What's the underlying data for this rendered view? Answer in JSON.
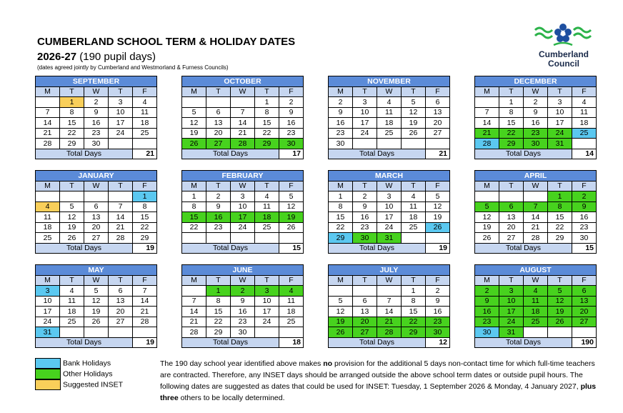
{
  "header": {
    "title": "CUMBERLAND SCHOOL TERM & HOLIDAY DATES",
    "year": "2026-27",
    "pupil_days": "(190 pupil days)",
    "subtitle": "(dates agreed jointly by Cumberland and Westmorland & Furness Councils)"
  },
  "logo": {
    "line1": "Cumberland",
    "line2": "Council"
  },
  "weekdays": [
    "M",
    "T",
    "W",
    "T",
    "F"
  ],
  "total_label": "Total Days",
  "months": [
    {
      "name": "SEPTEMBER",
      "total": 21,
      "weeks": [
        [
          null,
          {
            "day": 1,
            "color": "#f9cf5a"
          },
          2,
          3,
          4
        ],
        [
          7,
          8,
          9,
          10,
          11
        ],
        [
          14,
          15,
          16,
          17,
          18
        ],
        [
          21,
          22,
          23,
          24,
          25
        ],
        [
          28,
          29,
          30,
          null,
          null
        ]
      ]
    },
    {
      "name": "OCTOBER",
      "total": 17,
      "weeks": [
        [
          null,
          null,
          null,
          1,
          2
        ],
        [
          5,
          6,
          7,
          8,
          9
        ],
        [
          12,
          13,
          14,
          15,
          16
        ],
        [
          19,
          20,
          21,
          22,
          23
        ],
        [
          {
            "day": 26,
            "color": "#47d21e"
          },
          {
            "day": 27,
            "color": "#47d21e"
          },
          {
            "day": 28,
            "color": "#47d21e"
          },
          {
            "day": 29,
            "color": "#47d21e"
          },
          {
            "day": 30,
            "color": "#47d21e"
          }
        ]
      ]
    },
    {
      "name": "NOVEMBER",
      "total": 21,
      "weeks": [
        [
          2,
          3,
          4,
          5,
          6
        ],
        [
          9,
          10,
          11,
          12,
          13
        ],
        [
          16,
          17,
          18,
          19,
          20
        ],
        [
          23,
          24,
          25,
          26,
          27
        ],
        [
          30,
          null,
          null,
          null,
          null
        ]
      ]
    },
    {
      "name": "DECEMBER",
      "total": 14,
      "weeks": [
        [
          null,
          1,
          2,
          3,
          4
        ],
        [
          7,
          8,
          9,
          10,
          11
        ],
        [
          14,
          15,
          16,
          17,
          18
        ],
        [
          {
            "day": 21,
            "color": "#47d21e"
          },
          {
            "day": 22,
            "color": "#47d21e"
          },
          {
            "day": 23,
            "color": "#47d21e"
          },
          {
            "day": 24,
            "color": "#47d21e"
          },
          {
            "day": 25,
            "color": "#5bc8f0"
          }
        ],
        [
          {
            "day": 28,
            "color": "#5bc8f0"
          },
          {
            "day": 29,
            "color": "#47d21e"
          },
          {
            "day": 30,
            "color": "#47d21e"
          },
          {
            "day": 31,
            "color": "#47d21e"
          },
          null
        ]
      ]
    },
    {
      "name": "JANUARY",
      "total": 19,
      "weeks": [
        [
          null,
          null,
          null,
          null,
          {
            "day": 1,
            "color": "#5bc8f0"
          }
        ],
        [
          {
            "day": 4,
            "color": "#f9cf5a"
          },
          5,
          6,
          7,
          8
        ],
        [
          11,
          12,
          13,
          14,
          15
        ],
        [
          18,
          19,
          20,
          21,
          22
        ],
        [
          25,
          26,
          27,
          28,
          29
        ]
      ]
    },
    {
      "name": "FEBRUARY",
      "total": 15,
      "weeks": [
        [
          1,
          2,
          3,
          4,
          5
        ],
        [
          8,
          9,
          10,
          11,
          12
        ],
        [
          {
            "day": 15,
            "color": "#47d21e"
          },
          {
            "day": 16,
            "color": "#47d21e"
          },
          {
            "day": 17,
            "color": "#47d21e"
          },
          {
            "day": 18,
            "color": "#47d21e"
          },
          {
            "day": 19,
            "color": "#47d21e"
          }
        ],
        [
          22,
          23,
          24,
          25,
          26
        ],
        [
          null,
          null,
          null,
          null,
          null
        ]
      ]
    },
    {
      "name": "MARCH",
      "total": 19,
      "weeks": [
        [
          1,
          2,
          3,
          4,
          5
        ],
        [
          8,
          9,
          10,
          11,
          12
        ],
        [
          15,
          16,
          17,
          18,
          19
        ],
        [
          22,
          23,
          24,
          25,
          {
            "day": 26,
            "color": "#5bc8f0"
          }
        ],
        [
          {
            "day": 29,
            "color": "#5bc8f0"
          },
          {
            "day": 30,
            "color": "#47d21e"
          },
          {
            "day": 31,
            "color": "#47d21e"
          },
          null,
          null
        ]
      ]
    },
    {
      "name": "APRIL",
      "total": 15,
      "weeks": [
        [
          null,
          null,
          null,
          {
            "day": 1,
            "color": "#47d21e"
          },
          {
            "day": 2,
            "color": "#47d21e"
          }
        ],
        [
          {
            "day": 5,
            "color": "#47d21e"
          },
          {
            "day": 6,
            "color": "#47d21e"
          },
          {
            "day": 7,
            "color": "#47d21e"
          },
          {
            "day": 8,
            "color": "#47d21e"
          },
          {
            "day": 9,
            "color": "#47d21e"
          }
        ],
        [
          12,
          13,
          14,
          15,
          16
        ],
        [
          19,
          20,
          21,
          22,
          23
        ],
        [
          26,
          27,
          28,
          29,
          30
        ]
      ]
    },
    {
      "name": "MAY",
      "total": 19,
      "weeks": [
        [
          {
            "day": 3,
            "color": "#5bc8f0"
          },
          4,
          5,
          6,
          7
        ],
        [
          10,
          11,
          12,
          13,
          14
        ],
        [
          17,
          18,
          19,
          20,
          21
        ],
        [
          24,
          25,
          26,
          27,
          28
        ],
        [
          {
            "day": 31,
            "color": "#5bc8f0"
          },
          null,
          null,
          null,
          null
        ]
      ]
    },
    {
      "name": "JUNE",
      "total": 18,
      "weeks": [
        [
          null,
          {
            "day": 1,
            "color": "#47d21e"
          },
          {
            "day": 2,
            "color": "#47d21e"
          },
          {
            "day": 3,
            "color": "#47d21e"
          },
          {
            "day": 4,
            "color": "#47d21e"
          }
        ],
        [
          7,
          8,
          9,
          10,
          11
        ],
        [
          14,
          15,
          16,
          17,
          18
        ],
        [
          21,
          22,
          23,
          24,
          25
        ],
        [
          28,
          29,
          30,
          null,
          null
        ]
      ]
    },
    {
      "name": "JULY",
      "total": 12,
      "weeks": [
        [
          null,
          null,
          null,
          1,
          2
        ],
        [
          5,
          6,
          7,
          8,
          9
        ],
        [
          12,
          13,
          14,
          15,
          16
        ],
        [
          {
            "day": 19,
            "color": "#47d21e"
          },
          {
            "day": 20,
            "color": "#47d21e"
          },
          {
            "day": 21,
            "color": "#47d21e"
          },
          {
            "day": 22,
            "color": "#47d21e"
          },
          {
            "day": 23,
            "color": "#47d21e"
          }
        ],
        [
          {
            "day": 26,
            "color": "#47d21e"
          },
          {
            "day": 27,
            "color": "#47d21e"
          },
          {
            "day": 28,
            "color": "#47d21e"
          },
          {
            "day": 29,
            "color": "#47d21e"
          },
          {
            "day": 30,
            "color": "#47d21e"
          }
        ]
      ]
    },
    {
      "name": "AUGUST",
      "total": 190,
      "weeks": [
        [
          {
            "day": 2,
            "color": "#47d21e"
          },
          {
            "day": 3,
            "color": "#47d21e"
          },
          {
            "day": 4,
            "color": "#47d21e"
          },
          {
            "day": 5,
            "color": "#47d21e"
          },
          {
            "day": 6,
            "color": "#47d21e"
          }
        ],
        [
          {
            "day": 9,
            "color": "#47d21e"
          },
          {
            "day": 10,
            "color": "#47d21e"
          },
          {
            "day": 11,
            "color": "#47d21e"
          },
          {
            "day": 12,
            "color": "#47d21e"
          },
          {
            "day": 13,
            "color": "#47d21e"
          }
        ],
        [
          {
            "day": 16,
            "color": "#47d21e"
          },
          {
            "day": 17,
            "color": "#47d21e"
          },
          {
            "day": 18,
            "color": "#47d21e"
          },
          {
            "day": 19,
            "color": "#47d21e"
          },
          {
            "day": 20,
            "color": "#47d21e"
          }
        ],
        [
          {
            "day": 23,
            "color": "#47d21e"
          },
          {
            "day": 24,
            "color": "#47d21e"
          },
          {
            "day": 25,
            "color": "#47d21e"
          },
          {
            "day": 26,
            "color": "#47d21e"
          },
          {
            "day": 27,
            "color": "#47d21e"
          }
        ],
        [
          {
            "day": 30,
            "color": "#5bc8f0"
          },
          {
            "day": 31,
            "color": "#47d21e"
          },
          null,
          null,
          null
        ]
      ]
    }
  ],
  "legend": [
    {
      "label": "Bank Holidays",
      "color": "#5bc8f0"
    },
    {
      "label": "Other Holidays",
      "color": "#47d21e"
    },
    {
      "label": "Suggested INSET",
      "color": "#f9cf5a"
    }
  ],
  "note": [
    "The 190 day school year identified above makes ",
    "no",
    " provision for the additional 5 days non-contact time for which full-time teachers are contracted.  Therefore, any INSET days should be arranged outside the above school term dates or outside pupil hours.  The following dates are suggested as dates that could be used for INSET: Tuesday, 1 September 2026 & Monday, 4 January 2027, ",
    "plus three",
    " others to be locally determined."
  ]
}
